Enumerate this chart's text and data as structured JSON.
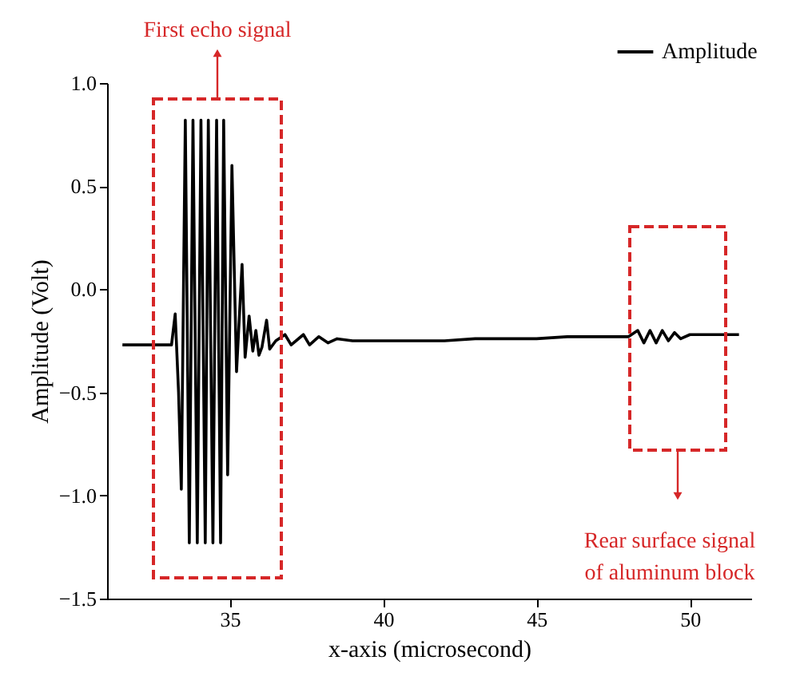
{
  "chart_data": {
    "type": "line",
    "xlabel": "x-axis (microsecond)",
    "ylabel": "Amplitude (Volt)",
    "xlim": [
      31,
      52
    ],
    "xticks": [
      35,
      40,
      45,
      50
    ],
    "ylim": [
      -1.5,
      1.0
    ],
    "yticks": [
      {
        "value": -1.5,
        "label": "−1.5"
      },
      {
        "value": -1.0,
        "label": "−1.0"
      },
      {
        "value": -0.5,
        "label": "−0.5"
      },
      {
        "value": 0,
        "label": "0.0"
      },
      {
        "value": 0.5,
        "label": "0.5"
      },
      {
        "value": 1.0,
        "label": "1.0"
      }
    ],
    "legend": "top right",
    "grid": false,
    "annotations": [
      "First echo signal",
      "Rear surface signal\nof aluminum block"
    ],
    "series": [
      {
        "name": "Amplitude",
        "color": "#000000",
        "x": [
          31.5,
          32.5,
          33.1,
          33.22,
          33.33,
          33.42,
          33.55,
          33.68,
          33.8,
          33.94,
          34.06,
          34.2,
          34.3,
          34.45,
          34.57,
          34.7,
          34.8,
          34.93,
          35.07,
          35.22,
          35.4,
          35.5,
          35.63,
          35.75,
          35.85,
          35.95,
          36.05,
          36.2,
          36.3,
          36.5,
          36.8,
          37.0,
          37.4,
          37.6,
          37.9,
          38.2,
          38.5,
          39.0,
          40.0,
          41.0,
          42.0,
          43.0,
          44.0,
          45.0,
          46.0,
          47.0,
          48.0,
          48.3,
          48.5,
          48.7,
          48.9,
          49.1,
          49.3,
          49.5,
          49.7,
          50.0,
          51.0,
          51.6
        ],
        "values": [
          -0.27,
          -0.27,
          -0.27,
          -0.12,
          -0.5,
          -0.97,
          0.82,
          -1.23,
          0.82,
          -1.23,
          0.82,
          -1.23,
          0.82,
          -1.23,
          0.82,
          -1.23,
          0.82,
          -0.9,
          0.6,
          -0.4,
          0.12,
          -0.33,
          -0.13,
          -0.3,
          -0.2,
          -0.32,
          -0.28,
          -0.15,
          -0.29,
          -0.25,
          -0.22,
          -0.27,
          -0.22,
          -0.27,
          -0.23,
          -0.26,
          -0.24,
          -0.25,
          -0.25,
          -0.25,
          -0.25,
          -0.24,
          -0.24,
          -0.24,
          -0.23,
          -0.23,
          -0.23,
          -0.2,
          -0.26,
          -0.2,
          -0.26,
          -0.2,
          -0.25,
          -0.21,
          -0.24,
          -0.22,
          -0.22,
          -0.22
        ]
      }
    ]
  }
}
